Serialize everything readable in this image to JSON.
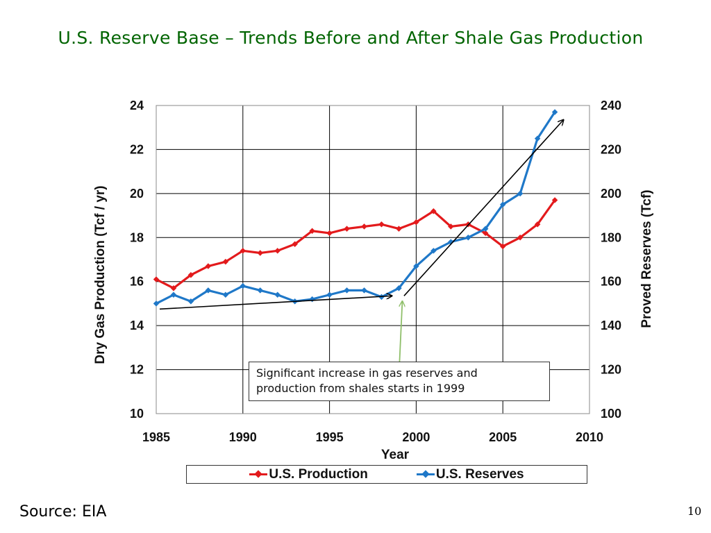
{
  "slide": {
    "title": "U.S. Reserve Base – Trends Before and After Shale Gas Production",
    "source": "Source: EIA",
    "page_number": "10"
  },
  "annotation": {
    "text_line1": "Significant increase in gas reserves and",
    "text_line2": "production from shales starts in 1999"
  },
  "colors": {
    "production": "#e31a1c",
    "reserves": "#1f78c8",
    "title": "#006400",
    "annotation_arrow": "#8fbf6a"
  },
  "chart_data": {
    "type": "line",
    "title": "",
    "xlabel": "Year",
    "ylabel": "Dry Gas Production (Tcf / yr)",
    "y2label": "Proved Reserves (Tcf)",
    "xlim": [
      1985,
      2010
    ],
    "ylim": [
      10,
      24
    ],
    "y2lim": [
      100,
      240
    ],
    "x_ticks": [
      "1985",
      "1990",
      "1995",
      "2000",
      "2005",
      "2010"
    ],
    "y_ticks": [
      "10",
      "12",
      "14",
      "16",
      "18",
      "20",
      "22",
      "24"
    ],
    "y2_ticks": [
      "100",
      "120",
      "140",
      "160",
      "180",
      "200",
      "220",
      "240"
    ],
    "grid": true,
    "legend_position": "bottom",
    "x": [
      1985,
      1986,
      1987,
      1988,
      1989,
      1990,
      1991,
      1992,
      1993,
      1994,
      1995,
      1996,
      1997,
      1998,
      1999,
      2000,
      2001,
      2002,
      2003,
      2004,
      2005,
      2006,
      2007,
      2008
    ],
    "series": [
      {
        "name": "U.S. Production",
        "axis": "left",
        "values": [
          16.1,
          15.7,
          16.3,
          16.7,
          16.9,
          17.4,
          17.3,
          17.4,
          17.7,
          18.3,
          18.2,
          18.4,
          18.5,
          18.6,
          18.4,
          18.7,
          19.2,
          18.5,
          18.6,
          18.2,
          17.6,
          18.0,
          18.6,
          19.7
        ]
      },
      {
        "name": "U.S. Reserves",
        "axis": "right",
        "values": [
          150,
          154,
          151,
          156,
          154,
          158,
          156,
          154,
          151,
          152,
          154,
          156,
          156,
          153,
          157,
          167,
          174,
          178,
          180,
          184,
          195,
          200,
          225,
          237
        ]
      }
    ],
    "trend_arrows": [
      {
        "from": [
          1985.2,
          147.5
        ],
        "to": [
          1998.6,
          153.5
        ]
      },
      {
        "from": [
          1999.3,
          153.5
        ],
        "to": [
          2008.5,
          233.5
        ]
      }
    ],
    "annotation_pointer_year": 1999.2
  }
}
